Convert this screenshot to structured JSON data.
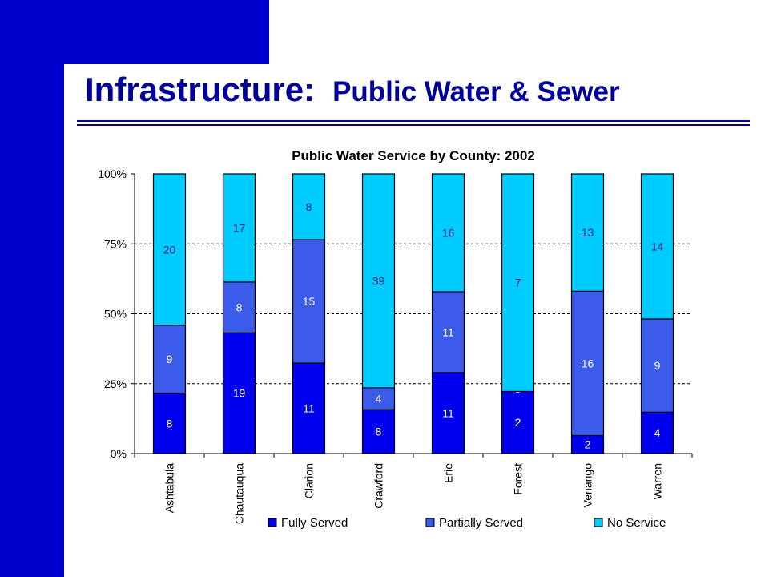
{
  "slide": {
    "title": "Infrastructure:",
    "subtitle": "Public Water & Sewer",
    "accent": "#0000cc",
    "title_color": "#000099"
  },
  "chart_data": {
    "type": "bar",
    "stacked": true,
    "normalized": true,
    "title": "Public Water Service by County: 2002",
    "xlabel": "",
    "ylabel": "",
    "ylim": [
      0,
      100
    ],
    "yticks": [
      "0%",
      "25%",
      "50%",
      "75%",
      "100%"
    ],
    "grid": "horizontal-dashed",
    "legend_position": "bottom",
    "categories": [
      "Ashtabula",
      "Chautauqua",
      "Clarion",
      "Crawford",
      "Erie",
      "Forest",
      "Venango",
      "Warren"
    ],
    "series": [
      {
        "name": "Fully Served",
        "color": "#0000ee",
        "values": [
          8,
          19,
          11,
          8,
          11,
          2,
          2,
          4
        ]
      },
      {
        "name": "Partially Served",
        "color": "#3b5bea",
        "values": [
          9,
          8,
          15,
          4,
          11,
          0,
          16,
          9
        ]
      },
      {
        "name": "No Service",
        "color": "#00ccff",
        "values": [
          20,
          17,
          8,
          39,
          16,
          7,
          13,
          14
        ]
      }
    ]
  }
}
